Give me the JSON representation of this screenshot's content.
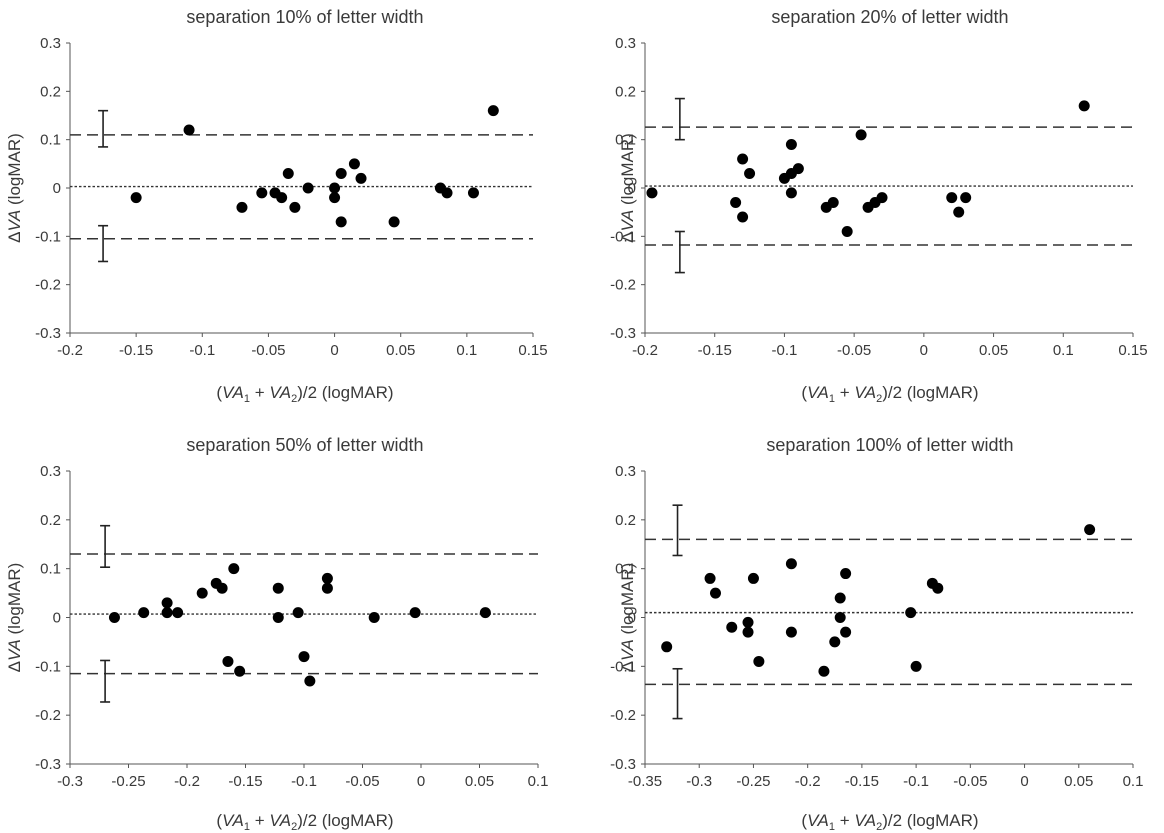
{
  "chart_data": [
    {
      "type": "scatter",
      "title": "separation 10% of letter width",
      "ylabel": {
        "pre": "Δ",
        "var": "VA",
        "post": " (logMAR)"
      },
      "xlabel": {
        "open": "(",
        "v1": "VA",
        "s1": "1",
        "plus": " + ",
        "v2": "VA",
        "s2": "2",
        "close": ")/2 (logMAR)"
      },
      "xlim": [
        -0.2,
        0.15
      ],
      "ylim": [
        -0.3,
        0.3
      ],
      "xticks": [
        -0.2,
        -0.15,
        -0.1,
        -0.05,
        0,
        0.05,
        0.1,
        0.15
      ],
      "xtick_labels": [
        "-0.2",
        "-0.15",
        "-0.1",
        "-0.05",
        "0",
        "0.05",
        "0.1",
        "0.15"
      ],
      "yticks": [
        -0.3,
        -0.2,
        -0.1,
        0,
        0.1,
        0.2,
        0.3
      ],
      "ytick_labels": [
        "-0.3",
        "-0.2",
        "-0.1",
        "0",
        "0.1",
        "0.2",
        "0.3"
      ],
      "mean_bias": 0.003,
      "upper_loa": 0.11,
      "lower_loa": -0.105,
      "ci_x": -0.175,
      "upper_ci": [
        0.085,
        0.16
      ],
      "lower_ci": [
        -0.152,
        -0.078
      ],
      "points": [
        {
          "x": -0.15,
          "y": -0.02
        },
        {
          "x": -0.11,
          "y": 0.12
        },
        {
          "x": -0.07,
          "y": -0.04
        },
        {
          "x": -0.055,
          "y": -0.01
        },
        {
          "x": -0.045,
          "y": -0.01
        },
        {
          "x": -0.04,
          "y": -0.02
        },
        {
          "x": -0.035,
          "y": 0.03
        },
        {
          "x": -0.03,
          "y": -0.04
        },
        {
          "x": -0.02,
          "y": 0.0
        },
        {
          "x": 0.0,
          "y": 0.0
        },
        {
          "x": 0.0,
          "y": -0.02
        },
        {
          "x": 0.005,
          "y": 0.03
        },
        {
          "x": 0.005,
          "y": -0.07
        },
        {
          "x": 0.015,
          "y": 0.05
        },
        {
          "x": 0.02,
          "y": 0.02
        },
        {
          "x": 0.045,
          "y": -0.07
        },
        {
          "x": 0.08,
          "y": 0.0
        },
        {
          "x": 0.085,
          "y": -0.01
        },
        {
          "x": 0.105,
          "y": -0.01
        },
        {
          "x": 0.12,
          "y": 0.16
        }
      ]
    },
    {
      "type": "scatter",
      "title": "separation 20% of letter width",
      "ylabel": {
        "pre": "Δ",
        "var": "VA",
        "post": " (logMAR)"
      },
      "xlabel": {
        "open": "(",
        "v1": "VA",
        "s1": "1",
        "plus": " + ",
        "v2": "VA",
        "s2": "2",
        "close": ")/2 (logMAR)"
      },
      "xlim": [
        -0.2,
        0.15
      ],
      "ylim": [
        -0.3,
        0.3
      ],
      "xticks": [
        -0.2,
        -0.15,
        -0.1,
        -0.05,
        0,
        0.05,
        0.1,
        0.15
      ],
      "xtick_labels": [
        "-0.2",
        "-0.15",
        "-0.1",
        "-0.05",
        "0",
        "0.05",
        "0.1",
        "0.15"
      ],
      "yticks": [
        -0.3,
        -0.2,
        -0.1,
        0,
        0.1,
        0.2,
        0.3
      ],
      "ytick_labels": [
        "-0.3",
        "-0.2",
        "-0.1",
        "0",
        "0.1",
        "0.2",
        "0.3"
      ],
      "mean_bias": 0.004,
      "upper_loa": 0.126,
      "lower_loa": -0.118,
      "ci_x": -0.175,
      "upper_ci": [
        0.1,
        0.185
      ],
      "lower_ci": [
        -0.175,
        -0.09
      ],
      "points": [
        {
          "x": -0.195,
          "y": -0.01
        },
        {
          "x": -0.135,
          "y": -0.03
        },
        {
          "x": -0.13,
          "y": 0.06
        },
        {
          "x": -0.13,
          "y": -0.06
        },
        {
          "x": -0.125,
          "y": 0.03
        },
        {
          "x": -0.1,
          "y": 0.02
        },
        {
          "x": -0.095,
          "y": 0.09
        },
        {
          "x": -0.095,
          "y": 0.03
        },
        {
          "x": -0.095,
          "y": -0.01
        },
        {
          "x": -0.09,
          "y": 0.04
        },
        {
          "x": -0.07,
          "y": -0.04
        },
        {
          "x": -0.065,
          "y": -0.03
        },
        {
          "x": -0.055,
          "y": -0.09
        },
        {
          "x": -0.045,
          "y": 0.11
        },
        {
          "x": -0.04,
          "y": -0.04
        },
        {
          "x": -0.035,
          "y": -0.03
        },
        {
          "x": -0.03,
          "y": -0.02
        },
        {
          "x": 0.02,
          "y": -0.02
        },
        {
          "x": 0.025,
          "y": -0.05
        },
        {
          "x": 0.03,
          "y": -0.02
        },
        {
          "x": 0.115,
          "y": 0.17
        }
      ]
    },
    {
      "type": "scatter",
      "title": "separation 50% of letter width",
      "ylabel": {
        "pre": "Δ",
        "var": "VA",
        "post": " (logMAR)"
      },
      "xlabel": {
        "open": "(",
        "v1": "VA",
        "s1": "1",
        "plus": " + ",
        "v2": "VA",
        "s2": "2",
        "close": ")/2 (logMAR)"
      },
      "xlim": [
        -0.3,
        0.1
      ],
      "ylim": [
        -0.3,
        0.3
      ],
      "xticks": [
        -0.3,
        -0.25,
        -0.2,
        -0.15,
        -0.1,
        -0.05,
        0,
        0.05,
        0.1
      ],
      "xtick_labels": [
        "-0.3",
        "-0.25",
        "-0.2",
        "-0.15",
        "-0.1",
        "-0.05",
        "0",
        "0.05",
        "0.1"
      ],
      "yticks": [
        -0.3,
        -0.2,
        -0.1,
        0,
        0.1,
        0.2,
        0.3
      ],
      "ytick_labels": [
        "-0.3",
        "-0.2",
        "-0.1",
        "0",
        "0.1",
        "0.2",
        "0.3"
      ],
      "mean_bias": 0.007,
      "upper_loa": 0.13,
      "lower_loa": -0.115,
      "ci_x": -0.27,
      "upper_ci": [
        0.103,
        0.188
      ],
      "lower_ci": [
        -0.173,
        -0.088
      ],
      "points": [
        {
          "x": -0.262,
          "y": 0.0
        },
        {
          "x": -0.237,
          "y": 0.01
        },
        {
          "x": -0.217,
          "y": 0.03
        },
        {
          "x": -0.217,
          "y": 0.01
        },
        {
          "x": -0.208,
          "y": 0.01
        },
        {
          "x": -0.187,
          "y": 0.05
        },
        {
          "x": -0.175,
          "y": 0.07
        },
        {
          "x": -0.17,
          "y": 0.06
        },
        {
          "x": -0.165,
          "y": -0.09
        },
        {
          "x": -0.16,
          "y": 0.1
        },
        {
          "x": -0.155,
          "y": -0.11
        },
        {
          "x": -0.122,
          "y": 0.06
        },
        {
          "x": -0.122,
          "y": 0.0
        },
        {
          "x": -0.105,
          "y": 0.01
        },
        {
          "x": -0.1,
          "y": -0.08
        },
        {
          "x": -0.095,
          "y": -0.13
        },
        {
          "x": -0.08,
          "y": 0.08
        },
        {
          "x": -0.08,
          "y": 0.06
        },
        {
          "x": -0.04,
          "y": 0.0
        },
        {
          "x": -0.005,
          "y": 0.01
        },
        {
          "x": 0.055,
          "y": 0.01
        }
      ]
    },
    {
      "type": "scatter",
      "title": "separation 100% of letter width",
      "ylabel": {
        "pre": "Δ",
        "var": "VA",
        "post": " (logMAR)"
      },
      "xlabel": {
        "open": "(",
        "v1": "VA",
        "s1": "1",
        "plus": " + ",
        "v2": "VA",
        "s2": "2",
        "close": ")/2 (logMAR)"
      },
      "xlim": [
        -0.35,
        0.1
      ],
      "ylim": [
        -0.3,
        0.3
      ],
      "xticks": [
        -0.35,
        -0.3,
        -0.25,
        -0.2,
        -0.15,
        -0.1,
        -0.05,
        0,
        0.05,
        0.1
      ],
      "xtick_labels": [
        "-0.35",
        "-0.3",
        "-0.25",
        "-0.2",
        "-0.15",
        "-0.1",
        "-0.05",
        "0",
        "0.05",
        "0.1"
      ],
      "yticks": [
        -0.3,
        -0.2,
        -0.1,
        0,
        0.1,
        0.2,
        0.3
      ],
      "ytick_labels": [
        "-0.3",
        "-0.2",
        "-0.1",
        "0",
        "0.1",
        "0.2",
        "0.3"
      ],
      "mean_bias": 0.01,
      "upper_loa": 0.16,
      "lower_loa": -0.137,
      "ci_x": -0.32,
      "upper_ci": [
        0.127,
        0.23
      ],
      "lower_ci": [
        -0.207,
        -0.105
      ],
      "points": [
        {
          "x": -0.33,
          "y": -0.06
        },
        {
          "x": -0.29,
          "y": 0.08
        },
        {
          "x": -0.285,
          "y": 0.05
        },
        {
          "x": -0.27,
          "y": -0.02
        },
        {
          "x": -0.255,
          "y": -0.01
        },
        {
          "x": -0.255,
          "y": -0.03
        },
        {
          "x": -0.25,
          "y": 0.08
        },
        {
          "x": -0.245,
          "y": -0.09
        },
        {
          "x": -0.215,
          "y": 0.11
        },
        {
          "x": -0.215,
          "y": -0.03
        },
        {
          "x": -0.185,
          "y": -0.11
        },
        {
          "x": -0.175,
          "y": -0.05
        },
        {
          "x": -0.17,
          "y": 0.04
        },
        {
          "x": -0.17,
          "y": 0.0
        },
        {
          "x": -0.165,
          "y": 0.09
        },
        {
          "x": -0.165,
          "y": -0.03
        },
        {
          "x": -0.105,
          "y": 0.01
        },
        {
          "x": -0.1,
          "y": -0.1
        },
        {
          "x": -0.085,
          "y": 0.07
        },
        {
          "x": -0.08,
          "y": 0.06
        },
        {
          "x": 0.06,
          "y": 0.18
        }
      ]
    }
  ]
}
